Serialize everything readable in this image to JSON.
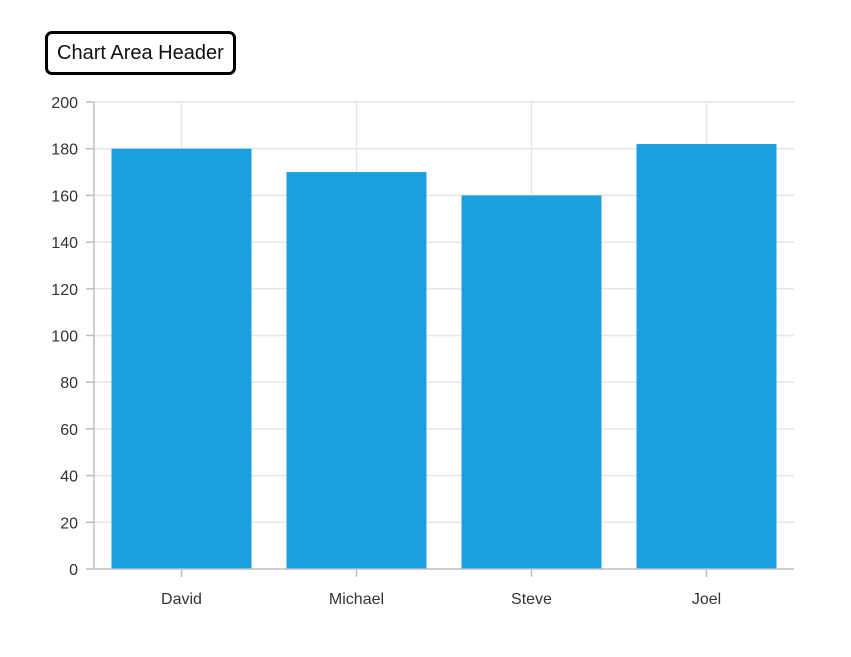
{
  "header": {
    "title": "Chart Area Header"
  },
  "colors": {
    "bar": "#1c9fe0",
    "grid": "#e6e6e6",
    "axis": "#bdbdbd",
    "text": "#333333"
  },
  "chart_data": {
    "type": "bar",
    "title": "Chart Area Header",
    "categories": [
      "David",
      "Michael",
      "Steve",
      "Joel"
    ],
    "values": [
      180,
      170,
      160,
      182
    ],
    "xlabel": "",
    "ylabel": "",
    "ylim": [
      0,
      200
    ],
    "yticks": [
      0,
      20,
      40,
      60,
      80,
      100,
      120,
      140,
      160,
      180,
      200
    ],
    "grid": true,
    "legend": "none"
  }
}
